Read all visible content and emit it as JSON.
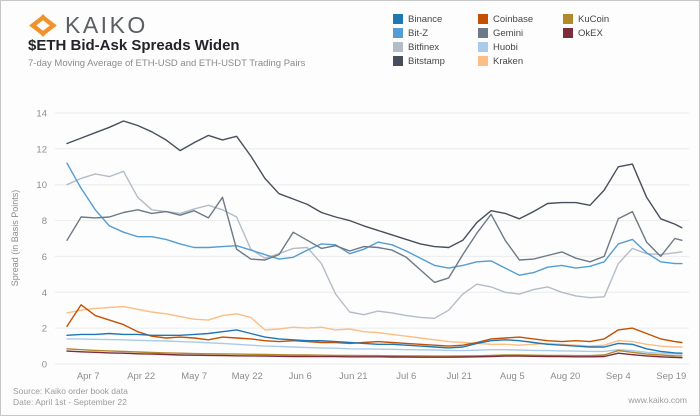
{
  "branding": {
    "logo_text": "KAIKO",
    "logo_color": "#f0932d",
    "website": "www.kaiko.com"
  },
  "header": {
    "title": "$ETH Bid-Ask Spreads Widen",
    "subtitle": "7-day Moving Average of ETH-USD and ETH-USDT Trading Pairs"
  },
  "footer": {
    "source_line": "Source: Kaiko order book data",
    "date_line": "Date: April 1st - September 22"
  },
  "chart_data": {
    "type": "line",
    "title": "$ETH Bid-Ask Spreads Widen",
    "xlabel": "",
    "ylabel": "Spread (in Basis Points)",
    "ylim": [
      0,
      14
    ],
    "y_ticks": [
      0,
      2,
      4,
      6,
      8,
      10,
      12,
      14
    ],
    "grid": "horizontal",
    "legend_position": "top-right",
    "x_unit": "days since April 1",
    "x_range_days": [
      0,
      174
    ],
    "x_ticks": [
      {
        "label": "Apr 7",
        "day": 6
      },
      {
        "label": "Apr 22",
        "day": 21
      },
      {
        "label": "May 7",
        "day": 36
      },
      {
        "label": "May 22",
        "day": 51
      },
      {
        "label": "Jun 6",
        "day": 66
      },
      {
        "label": "Jun 21",
        "day": 81
      },
      {
        "label": "Jul 6",
        "day": 96
      },
      {
        "label": "Jul 21",
        "day": 111
      },
      {
        "label": "Aug 5",
        "day": 126
      },
      {
        "label": "Aug 20",
        "day": 141
      },
      {
        "label": "Sep 4",
        "day": 156
      },
      {
        "label": "Sep 19",
        "day": 171
      }
    ],
    "days": [
      0,
      4,
      8,
      12,
      16,
      20,
      24,
      28,
      32,
      36,
      40,
      44,
      48,
      52,
      56,
      60,
      64,
      68,
      72,
      76,
      80,
      84,
      88,
      92,
      96,
      100,
      104,
      108,
      112,
      116,
      120,
      124,
      128,
      132,
      136,
      140,
      144,
      148,
      152,
      156,
      160,
      164,
      168,
      172,
      174
    ],
    "series": [
      {
        "name": "Binance",
        "color": "#1f77b4",
        "z": 6,
        "values": [
          1.6,
          1.65,
          1.65,
          1.7,
          1.65,
          1.65,
          1.6,
          1.6,
          1.6,
          1.65,
          1.7,
          1.8,
          1.9,
          1.7,
          1.5,
          1.4,
          1.35,
          1.3,
          1.3,
          1.25,
          1.2,
          1.15,
          1.1,
          1.1,
          1.05,
          1.0,
          0.95,
          0.9,
          0.95,
          1.15,
          1.3,
          1.35,
          1.3,
          1.2,
          1.1,
          1.05,
          1.0,
          0.95,
          0.95,
          1.15,
          1.1,
          0.85,
          0.7,
          0.62,
          0.6
        ]
      },
      {
        "name": "Bit-Z",
        "color": "#539dd4",
        "z": 8,
        "values": [
          11.2,
          9.8,
          8.6,
          7.7,
          7.35,
          7.1,
          7.1,
          6.95,
          6.7,
          6.5,
          6.5,
          6.55,
          6.6,
          6.35,
          6.1,
          5.85,
          5.95,
          6.35,
          6.7,
          6.65,
          6.15,
          6.4,
          6.8,
          6.65,
          6.3,
          5.9,
          5.5,
          5.35,
          5.5,
          5.7,
          5.75,
          5.35,
          4.95,
          5.1,
          5.4,
          5.5,
          5.35,
          5.45,
          5.7,
          6.7,
          6.95,
          6.2,
          5.7,
          5.6,
          5.6
        ]
      },
      {
        "name": "Bitfinex",
        "color": "#b4bcc8",
        "z": 7,
        "values": [
          10.0,
          10.35,
          10.6,
          10.45,
          10.75,
          9.3,
          8.6,
          8.5,
          8.4,
          8.65,
          8.85,
          8.6,
          8.2,
          6.4,
          5.9,
          6.15,
          6.45,
          6.5,
          5.6,
          3.9,
          2.9,
          2.75,
          2.95,
          2.85,
          2.7,
          2.6,
          2.55,
          3.0,
          3.9,
          4.45,
          4.3,
          4.0,
          3.9,
          4.15,
          4.3,
          4.0,
          3.8,
          3.7,
          3.75,
          5.6,
          6.45,
          6.15,
          6.1,
          6.2,
          6.25
        ]
      },
      {
        "name": "Bitstamp",
        "color": "#474f5d",
        "z": 10,
        "values": [
          12.3,
          12.6,
          12.9,
          13.2,
          13.55,
          13.3,
          12.95,
          12.5,
          11.9,
          12.35,
          12.75,
          12.5,
          12.7,
          11.6,
          10.35,
          9.5,
          9.2,
          8.9,
          8.45,
          8.2,
          8.0,
          7.7,
          7.45,
          7.2,
          6.95,
          6.7,
          6.55,
          6.5,
          6.9,
          7.9,
          8.55,
          8.4,
          8.1,
          8.5,
          8.95,
          9.0,
          9.0,
          8.85,
          9.7,
          11.0,
          11.15,
          9.3,
          8.1,
          7.8,
          7.6
        ]
      },
      {
        "name": "Coinbase",
        "color": "#c45102",
        "z": 5,
        "values": [
          2.1,
          3.3,
          2.7,
          2.45,
          2.2,
          1.8,
          1.55,
          1.45,
          1.5,
          1.45,
          1.35,
          1.5,
          1.45,
          1.4,
          1.3,
          1.25,
          1.3,
          1.25,
          1.2,
          1.2,
          1.15,
          1.2,
          1.25,
          1.2,
          1.15,
          1.1,
          1.05,
          1.0,
          1.05,
          1.2,
          1.4,
          1.45,
          1.5,
          1.4,
          1.3,
          1.25,
          1.3,
          1.25,
          1.4,
          1.9,
          2.0,
          1.7,
          1.4,
          1.25,
          1.2
        ]
      },
      {
        "name": "Gemini",
        "color": "#6d7986",
        "z": 9,
        "values": [
          6.9,
          8.2,
          8.15,
          8.2,
          8.45,
          8.6,
          8.4,
          8.5,
          8.3,
          8.55,
          8.15,
          9.3,
          6.4,
          5.85,
          5.8,
          6.1,
          7.35,
          6.9,
          6.45,
          6.6,
          6.3,
          6.55,
          6.5,
          6.35,
          5.95,
          5.25,
          4.55,
          4.8,
          6.1,
          7.3,
          8.35,
          6.9,
          5.8,
          5.85,
          6.05,
          6.25,
          5.9,
          5.7,
          6.0,
          8.1,
          8.5,
          6.8,
          6.0,
          7.0,
          6.9
        ]
      },
      {
        "name": "Huobi",
        "color": "#a9cbe9",
        "z": 1,
        "values": [
          1.4,
          1.4,
          1.38,
          1.36,
          1.35,
          1.32,
          1.3,
          1.28,
          1.25,
          1.22,
          1.18,
          1.15,
          1.1,
          1.05,
          1.0,
          0.98,
          0.95,
          0.92,
          0.9,
          0.88,
          0.85,
          0.84,
          0.83,
          0.82,
          0.8,
          0.79,
          0.78,
          0.76,
          0.75,
          0.77,
          0.8,
          0.8,
          0.78,
          0.76,
          0.75,
          0.73,
          0.72,
          0.7,
          0.7,
          0.8,
          0.75,
          0.65,
          0.6,
          0.57,
          0.55
        ]
      },
      {
        "name": "Kraken",
        "color": "#fdbd83",
        "z": 2,
        "values": [
          2.85,
          3.0,
          3.1,
          3.15,
          3.2,
          3.05,
          2.9,
          2.8,
          2.65,
          2.5,
          2.45,
          2.7,
          2.8,
          2.6,
          1.9,
          1.95,
          2.05,
          2.0,
          2.05,
          1.9,
          1.95,
          1.8,
          1.75,
          1.65,
          1.55,
          1.45,
          1.35,
          1.25,
          1.2,
          1.15,
          1.1,
          1.1,
          1.05,
          1.1,
          1.15,
          1.1,
          1.05,
          1.0,
          1.05,
          1.3,
          1.25,
          1.1,
          1.0,
          0.95,
          0.95
        ]
      },
      {
        "name": "KuCoin",
        "color": "#b1882c",
        "z": 3,
        "values": [
          0.85,
          0.8,
          0.76,
          0.73,
          0.7,
          0.67,
          0.64,
          0.62,
          0.6,
          0.58,
          0.57,
          0.56,
          0.55,
          0.54,
          0.53,
          0.52,
          0.5,
          0.5,
          0.49,
          0.48,
          0.48,
          0.47,
          0.47,
          0.46,
          0.45,
          0.45,
          0.44,
          0.44,
          0.45,
          0.46,
          0.48,
          0.5,
          0.5,
          0.49,
          0.48,
          0.48,
          0.47,
          0.47,
          0.5,
          0.75,
          0.65,
          0.55,
          0.5,
          0.46,
          0.45
        ]
      },
      {
        "name": "OkEX",
        "color": "#7b2b3b",
        "z": 4,
        "values": [
          0.72,
          0.68,
          0.65,
          0.62,
          0.6,
          0.57,
          0.55,
          0.53,
          0.5,
          0.49,
          0.48,
          0.47,
          0.46,
          0.45,
          0.44,
          0.43,
          0.42,
          0.42,
          0.41,
          0.41,
          0.4,
          0.4,
          0.4,
          0.39,
          0.39,
          0.38,
          0.38,
          0.38,
          0.39,
          0.4,
          0.42,
          0.44,
          0.44,
          0.43,
          0.42,
          0.41,
          0.4,
          0.4,
          0.42,
          0.6,
          0.52,
          0.45,
          0.4,
          0.37,
          0.35
        ]
      }
    ]
  }
}
